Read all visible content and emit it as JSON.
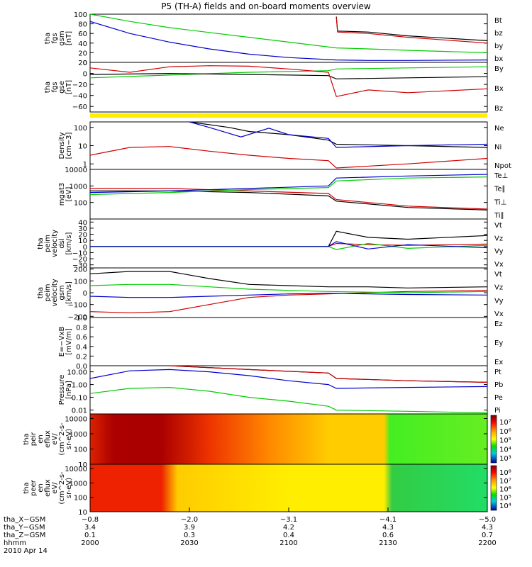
{
  "title": "P5 (TH-A) fields and on-board moments overview",
  "chart_data": [
    {
      "type": "line",
      "id": "fgs_gsm",
      "ylabel": [
        "tha",
        "fgs",
        "gsm",
        "[nT]"
      ],
      "ylim": [
        0,
        100
      ],
      "ticks": [
        "100",
        "80",
        "60",
        "40",
        "20",
        "0"
      ],
      "tick_values": [
        100,
        80,
        60,
        40,
        20,
        0
      ],
      "scale": "linear",
      "legend": [
        {
          "label": "Bt",
          "color": "#000000"
        },
        {
          "label": "bz",
          "color": "#d00000"
        },
        {
          "label": "by",
          "color": "#00cc00"
        },
        {
          "label": "bx",
          "color": "#0000cc"
        }
      ],
      "series": [
        {
          "name": "Bt",
          "color": "#000000",
          "x": [
            0.62,
            0.623,
            0.7,
            0.8,
            1.0
          ],
          "y": [
            95,
            65,
            63,
            55,
            45
          ]
        },
        {
          "name": "bz",
          "color": "#d00000",
          "x": [
            0.62,
            0.623,
            0.7,
            0.8,
            1.0
          ],
          "y": [
            93,
            63,
            60,
            52,
            40
          ]
        },
        {
          "name": "by",
          "color": "#00cc00",
          "x": [
            0.0,
            0.1,
            0.2,
            0.3,
            0.4,
            0.5,
            0.62,
            0.7,
            0.8,
            1.0
          ],
          "y": [
            100,
            85,
            72,
            62,
            52,
            42,
            30,
            28,
            25,
            20
          ]
        },
        {
          "name": "bx",
          "color": "#0000cc",
          "x": [
            0.0,
            0.1,
            0.2,
            0.3,
            0.4,
            0.5,
            0.62,
            0.7,
            0.8,
            1.0
          ],
          "y": [
            85,
            60,
            42,
            28,
            17,
            10,
            5,
            4,
            4,
            5
          ]
        }
      ]
    },
    {
      "type": "line",
      "id": "fgs_gse",
      "ylabel": [
        "tha",
        "fgs",
        "gse",
        "[nT]"
      ],
      "ylim": [
        -70,
        20
      ],
      "ticks": [
        "20",
        "0",
        "−20",
        "−40",
        "−60"
      ],
      "tick_values": [
        20,
        0,
        -20,
        -40,
        -60
      ],
      "scale": "linear",
      "legend": [
        {
          "label": "By",
          "color": "#00cc00"
        },
        {
          "label": "Bx",
          "color": "#000000"
        },
        {
          "label": "Bz",
          "color": "#d00000"
        }
      ],
      "series": [
        {
          "name": "By",
          "color": "#00cc00",
          "x": [
            0.0,
            0.2,
            0.4,
            0.6,
            0.62,
            0.8,
            1.0
          ],
          "y": [
            -8,
            -3,
            2,
            5,
            8,
            10,
            12
          ]
        },
        {
          "name": "Bx",
          "color": "#000000",
          "x": [
            0.0,
            0.2,
            0.4,
            0.6,
            0.62,
            0.8,
            1.0
          ],
          "y": [
            -2,
            0,
            -2,
            -4,
            -10,
            -8,
            -6
          ]
        },
        {
          "name": "Bz",
          "color": "#d00000",
          "x": [
            0.0,
            0.1,
            0.2,
            0.3,
            0.4,
            0.5,
            0.6,
            0.62,
            0.7,
            0.8,
            1.0
          ],
          "y": [
            10,
            2,
            12,
            14,
            13,
            8,
            2,
            -42,
            -30,
            -35,
            -28
          ]
        }
      ]
    },
    {
      "type": "line",
      "id": "density",
      "ylabel": [
        "Density",
        "[cm−3]"
      ],
      "ylim": [
        0.5,
        200
      ],
      "ticks": [
        "100",
        "10",
        "1"
      ],
      "tick_values": [
        100,
        10,
        1
      ],
      "scale": "log",
      "legend": [
        {
          "label": "Ne",
          "color": "#d00000"
        },
        {
          "label": "Ni",
          "color": "#000000"
        },
        {
          "label": "Npot",
          "color": "#0000cc"
        }
      ],
      "series": [
        {
          "name": "Ne",
          "color": "#d00000",
          "x": [
            0.0,
            0.1,
            0.2,
            0.3,
            0.4,
            0.5,
            0.6,
            0.62,
            0.8,
            1.0
          ],
          "y": [
            3,
            8,
            9,
            5,
            3,
            2,
            1.5,
            0.6,
            1,
            2
          ]
        },
        {
          "name": "Ni",
          "color": "#000000",
          "x": [
            0.25,
            0.35,
            0.4,
            0.5,
            0.6,
            0.62,
            0.8,
            1.0
          ],
          "y": [
            200,
            100,
            60,
            40,
            20,
            12,
            10,
            8
          ]
        },
        {
          "name": "Npot",
          "color": "#0000cc",
          "x": [
            0.25,
            0.3,
            0.38,
            0.45,
            0.5,
            0.6,
            0.62,
            0.8,
            1.0
          ],
          "y": [
            200,
            100,
            30,
            90,
            40,
            25,
            8,
            10,
            12
          ]
        }
      ]
    },
    {
      "type": "line",
      "id": "temperature",
      "ylabel": [
        "mgat3",
        "[eV]"
      ],
      "ylim": [
        10,
        10000
      ],
      "ticks": [
        "10000",
        "1000",
        "100"
      ],
      "tick_values": [
        10000,
        1000,
        100
      ],
      "scale": "log",
      "legend": [
        {
          "label": "Te⊥",
          "color": "#d00000"
        },
        {
          "label": "Te∥",
          "color": "#000000"
        },
        {
          "label": "Ti⊥",
          "color": "#0000cc"
        },
        {
          "label": "Ti∥",
          "color": "#00cc00"
        }
      ],
      "series": [
        {
          "name": "Te⊥",
          "color": "#d00000",
          "x": [
            0.0,
            0.2,
            0.4,
            0.6,
            0.62,
            0.8,
            1.0
          ],
          "y": [
            700,
            700,
            500,
            350,
            150,
            60,
            40
          ]
        },
        {
          "name": "Te∥",
          "color": "#000000",
          "x": [
            0.0,
            0.2,
            0.4,
            0.6,
            0.62,
            0.8,
            1.0
          ],
          "y": [
            500,
            500,
            400,
            250,
            120,
            50,
            35
          ]
        },
        {
          "name": "Ti⊥",
          "color": "#0000cc",
          "x": [
            0.0,
            0.2,
            0.4,
            0.6,
            0.62,
            0.8,
            1.0
          ],
          "y": [
            400,
            500,
            700,
            1000,
            3000,
            4000,
            5000
          ]
        },
        {
          "name": "Ti∥",
          "color": "#00cc00",
          "x": [
            0.0,
            0.2,
            0.4,
            0.6,
            0.62,
            0.8,
            1.0
          ],
          "y": [
            300,
            400,
            600,
            800,
            2000,
            3000,
            3500
          ]
        }
      ]
    },
    {
      "type": "line",
      "id": "velocity_dsl",
      "ylabel": [
        "tha",
        "peim",
        "velocity",
        "dsl",
        "[km/s]"
      ],
      "ylim": [
        -35,
        45
      ],
      "ticks": [
        "40",
        "30",
        "20",
        "10",
        "0",
        "−10",
        "−20",
        "−30"
      ],
      "tick_values": [
        40,
        30,
        20,
        10,
        0,
        -10,
        -20,
        -30
      ],
      "scale": "linear",
      "legend": [
        {
          "label": "Vt",
          "color": "#000000"
        },
        {
          "label": "Vz",
          "color": "#d00000"
        },
        {
          "label": "Vy",
          "color": "#00cc00"
        },
        {
          "label": "Vx",
          "color": "#0000cc"
        }
      ],
      "series": [
        {
          "name": "Vt",
          "color": "#000000",
          "x": [
            0.0,
            0.6,
            0.62,
            0.7,
            0.8,
            1.0
          ],
          "y": [
            0,
            0,
            25,
            15,
            12,
            18
          ]
        },
        {
          "name": "Vz",
          "color": "#d00000",
          "x": [
            0.0,
            0.6,
            0.62,
            0.7,
            0.8,
            1.0
          ],
          "y": [
            0,
            0,
            5,
            3,
            2,
            4
          ]
        },
        {
          "name": "Vy",
          "color": "#00cc00",
          "x": [
            0.0,
            0.6,
            0.62,
            0.7,
            0.8,
            1.0
          ],
          "y": [
            0,
            0,
            -5,
            5,
            -3,
            2
          ]
        },
        {
          "name": "Vx",
          "color": "#0000cc",
          "x": [
            0.0,
            0.6,
            0.62,
            0.7,
            0.8,
            1.0
          ],
          "y": [
            0,
            0,
            8,
            -4,
            3,
            -2
          ]
        }
      ]
    },
    {
      "type": "line",
      "id": "velocity_gsm",
      "ylabel": [
        "tha",
        "peim",
        "velocity",
        "gsm",
        "[km/s]"
      ],
      "ylim": [
        -210,
        210
      ],
      "ticks": [
        "200",
        "100",
        "0",
        "−100",
        "−200"
      ],
      "tick_values": [
        200,
        100,
        0,
        -100,
        -200
      ],
      "scale": "linear",
      "legend": [
        {
          "label": "Vt",
          "color": "#000000"
        },
        {
          "label": "Vz",
          "color": "#d00000"
        },
        {
          "label": "Vy",
          "color": "#00cc00"
        },
        {
          "label": "Vx",
          "color": "#0000cc"
        }
      ],
      "series": [
        {
          "name": "Vt",
          "color": "#000000",
          "x": [
            0.0,
            0.1,
            0.2,
            0.3,
            0.4,
            0.5,
            0.6,
            0.7,
            0.8,
            1.0
          ],
          "y": [
            160,
            180,
            180,
            120,
            70,
            60,
            50,
            50,
            40,
            50
          ]
        },
        {
          "name": "Vz",
          "color": "#d00000",
          "x": [
            0.0,
            0.1,
            0.2,
            0.3,
            0.4,
            0.5,
            0.6,
            0.7,
            0.8,
            1.0
          ],
          "y": [
            -160,
            -170,
            -160,
            -100,
            -40,
            -20,
            -10,
            0,
            10,
            20
          ]
        },
        {
          "name": "Vy",
          "color": "#00cc00",
          "x": [
            0.0,
            0.1,
            0.2,
            0.3,
            0.4,
            0.5,
            0.6,
            0.7,
            0.8,
            1.0
          ],
          "y": [
            60,
            70,
            70,
            50,
            30,
            20,
            10,
            5,
            0,
            10
          ]
        },
        {
          "name": "Vx",
          "color": "#0000cc",
          "x": [
            0.0,
            0.1,
            0.2,
            0.3,
            0.4,
            0.5,
            0.6,
            0.7,
            0.8,
            1.0
          ],
          "y": [
            -30,
            -40,
            -40,
            -30,
            -20,
            -10,
            -5,
            -10,
            -15,
            -20
          ]
        }
      ]
    },
    {
      "type": "line",
      "id": "efield",
      "ylabel": [
        "E=−VxB",
        "[mV/m]"
      ],
      "ylim": [
        0,
        1
      ],
      "ticks": [
        "1.0",
        "0.8",
        "0.6",
        "0.4",
        "0.2",
        "0.0"
      ],
      "tick_values": [
        1.0,
        0.8,
        0.6,
        0.4,
        0.2,
        0.0
      ],
      "scale": "linear",
      "legend": [
        {
          "label": "Ez",
          "color": "#d00000"
        },
        {
          "label": "Ey",
          "color": "#00cc00"
        },
        {
          "label": "Ex",
          "color": "#0000cc"
        }
      ],
      "series": []
    },
    {
      "type": "line",
      "id": "pressure",
      "ylabel": [
        "Pressure",
        "[nPa]"
      ],
      "ylim": [
        0.005,
        30
      ],
      "ticks": [
        "10.00",
        "1.00",
        "0.10",
        "0.01"
      ],
      "tick_values": [
        10,
        1,
        0.1,
        0.01
      ],
      "scale": "log",
      "legend": [
        {
          "label": "Pt",
          "color": "#000000"
        },
        {
          "label": "Pb",
          "color": "#d00000"
        },
        {
          "label": "Pe",
          "color": "#00cc00"
        },
        {
          "label": "Pi",
          "color": "#0000cc"
        }
      ],
      "series": [
        {
          "name": "Pt",
          "color": "#000000",
          "x": [
            0.2,
            0.4,
            0.6,
            0.62,
            0.8,
            1.0
          ],
          "y": [
            30,
            15,
            8,
            3,
            2,
            1.5
          ]
        },
        {
          "name": "Pb",
          "color": "#d00000",
          "x": [
            0.2,
            0.4,
            0.6,
            0.62,
            0.8,
            1.0
          ],
          "y": [
            30,
            15,
            8,
            3,
            2,
            1.5
          ]
        },
        {
          "name": "Pe",
          "color": "#00cc00",
          "x": [
            0.0,
            0.1,
            0.2,
            0.3,
            0.4,
            0.5,
            0.6,
            0.62,
            0.8,
            1.0
          ],
          "y": [
            0.2,
            0.5,
            0.6,
            0.3,
            0.1,
            0.05,
            0.02,
            0.01,
            0.008,
            0.006
          ]
        },
        {
          "name": "Pi",
          "color": "#0000cc",
          "x": [
            0.0,
            0.1,
            0.2,
            0.3,
            0.4,
            0.5,
            0.6,
            0.62,
            0.8,
            1.0
          ],
          "y": [
            3,
            12,
            15,
            10,
            5,
            2,
            1,
            0.5,
            0.6,
            0.7
          ]
        }
      ]
    },
    {
      "type": "heatmap",
      "id": "ion_spectrogram",
      "ylabel": [
        "tha",
        "peir",
        "en",
        "eflux",
        "eV/",
        "(cm^2-s-",
        "sr-eV)"
      ],
      "ylim": [
        10,
        20000
      ],
      "ticks": [
        "10000",
        "1000",
        "100",
        "10"
      ],
      "tick_values": [
        10000,
        1000,
        100,
        10
      ],
      "scale": "log",
      "colorbar_ticks": [
        "10⁷",
        "10⁶",
        "10⁵",
        "10⁴",
        "10³"
      ]
    },
    {
      "type": "heatmap",
      "id": "electron_spectrogram",
      "ylabel": [
        "tha",
        "peer",
        "en",
        "eflux",
        "eV/",
        "(cm^2-s-",
        "sr-eV)"
      ],
      "ylim": [
        10,
        20000
      ],
      "ticks": [
        "10000",
        "1000",
        "100",
        "10"
      ],
      "tick_values": [
        10000,
        1000,
        100,
        10
      ],
      "scale": "log",
      "colorbar_ticks": [
        "10⁸",
        "10⁷",
        "10⁶",
        "10⁵",
        "10⁴"
      ]
    }
  ],
  "xaxis": {
    "rows": [
      {
        "label": "tha_X−GSM",
        "values": [
          "−0.8",
          "−2.0",
          "−3.1",
          "−4.1",
          "−5.0"
        ]
      },
      {
        "label": "tha_Y−GSM",
        "values": [
          "3.4",
          "3.9",
          "4.2",
          "4.3",
          "4.3"
        ]
      },
      {
        "label": "tha_Z−GSM",
        "values": [
          "0.1",
          "0.3",
          "0.4",
          "0.6",
          "0.7"
        ]
      },
      {
        "label": "hhmm",
        "values": [
          "2000",
          "2030",
          "2100",
          "2130",
          "2200"
        ]
      }
    ],
    "date": "2010 Apr 14"
  }
}
